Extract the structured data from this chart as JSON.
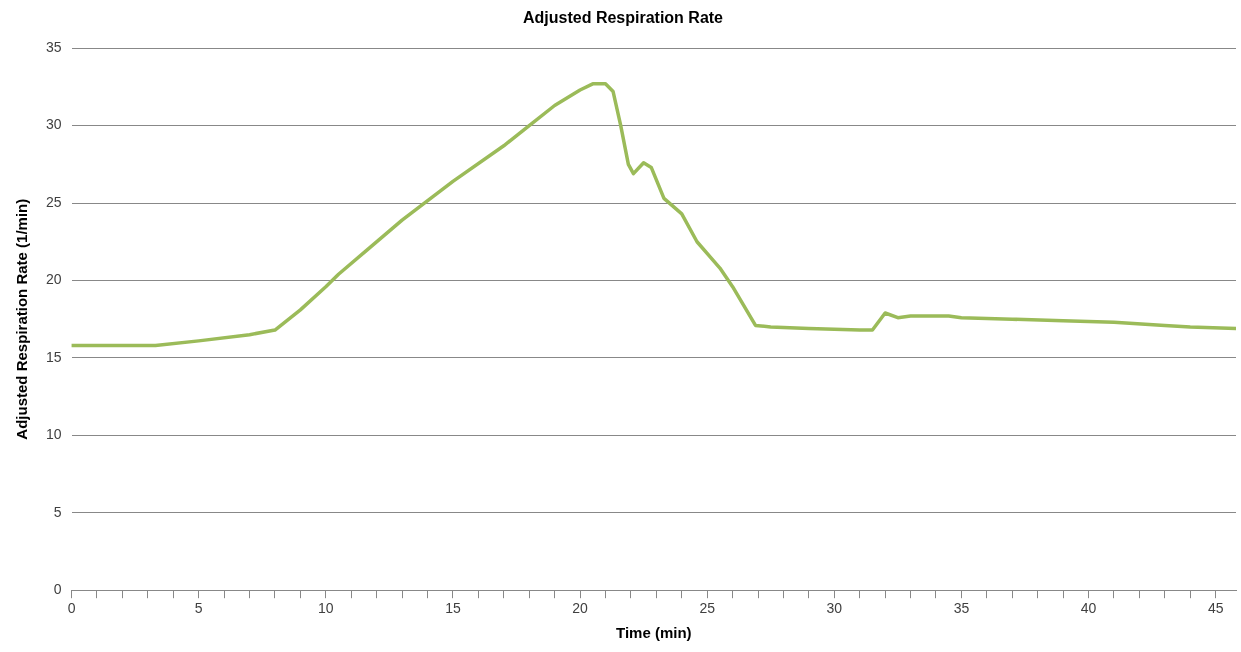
{
  "chart_data": {
    "type": "line",
    "title": "Adjusted Respiration Rate",
    "xlabel": "Time (min)",
    "ylabel": "Adjusted Respiration Rate (1/min)",
    "x": [
      0,
      3.3,
      5,
      7,
      8,
      9,
      10,
      10.5,
      11.5,
      13,
      15,
      17,
      18,
      19,
      20,
      20.5,
      21,
      21.3,
      21.6,
      21.9,
      22.1,
      22.5,
      22.8,
      23.3,
      24,
      24.6,
      25.5,
      26,
      26.9,
      27.5,
      29,
      31,
      31.5,
      32,
      32.5,
      33,
      34.5,
      35,
      37,
      39,
      41,
      43,
      44,
      45.8
    ],
    "series": [
      {
        "color": "#9bbb59",
        "values": [
          15.8,
          15.8,
          16.1,
          16.5,
          16.8,
          18.1,
          19.6,
          20.4,
          21.8,
          23.9,
          26.4,
          28.7,
          30.0,
          31.3,
          32.3,
          32.7,
          32.7,
          32.2,
          30.0,
          27.5,
          26.9,
          27.6,
          27.3,
          25.3,
          24.3,
          22.5,
          20.8,
          19.6,
          17.1,
          17.0,
          16.9,
          16.8,
          16.8,
          17.9,
          17.6,
          17.7,
          17.7,
          17.6,
          17.5,
          17.4,
          17.3,
          17.1,
          17.0,
          16.9
        ]
      }
    ],
    "xlim": [
      0,
      45.8
    ],
    "xticks": [
      0,
      {
        "value": 1,
        "label": null
      },
      {
        "value": 2,
        "label": null
      },
      {
        "value": 3,
        "label": null
      },
      {
        "value": 4,
        "label": null
      },
      5,
      {
        "value": 6,
        "label": null
      },
      {
        "value": 7,
        "label": null
      },
      {
        "value": 8,
        "label": null
      },
      {
        "value": 9,
        "label": null
      },
      10,
      {
        "value": 11,
        "label": null
      },
      {
        "value": 12,
        "label": null
      },
      {
        "value": 13,
        "label": null
      },
      {
        "value": 14,
        "label": null
      },
      15,
      {
        "value": 16,
        "label": null
      },
      {
        "value": 17,
        "label": null
      },
      {
        "value": 18,
        "label": null
      },
      {
        "value": 19,
        "label": null
      },
      20,
      {
        "value": 21,
        "label": null
      },
      {
        "value": 22,
        "label": null
      },
      {
        "value": 23,
        "label": null
      },
      {
        "value": 24,
        "label": null
      },
      25,
      {
        "value": 26,
        "label": null
      },
      {
        "value": 27,
        "label": null
      },
      {
        "value": 28,
        "label": null
      },
      {
        "value": 29,
        "label": null
      },
      30,
      {
        "value": 31,
        "label": null
      },
      {
        "value": 32,
        "label": null
      },
      {
        "value": 33,
        "label": null
      },
      {
        "value": 34,
        "label": null
      },
      35,
      {
        "value": 36,
        "label": null
      },
      {
        "value": 37,
        "label": null
      },
      {
        "value": 38,
        "label": null
      },
      {
        "value": 39,
        "label": null
      },
      40,
      {
        "value": 41,
        "label": null
      },
      {
        "value": 42,
        "label": null
      },
      {
        "value": 43,
        "label": null
      },
      {
        "value": 44,
        "label": null
      },
      45
    ],
    "ylim": [
      0,
      35
    ],
    "yticks": [
      0,
      5,
      10,
      15,
      20,
      25,
      30,
      35
    ],
    "grid": "y",
    "legend": false,
    "marker": "none",
    "line_style": "solid"
  }
}
